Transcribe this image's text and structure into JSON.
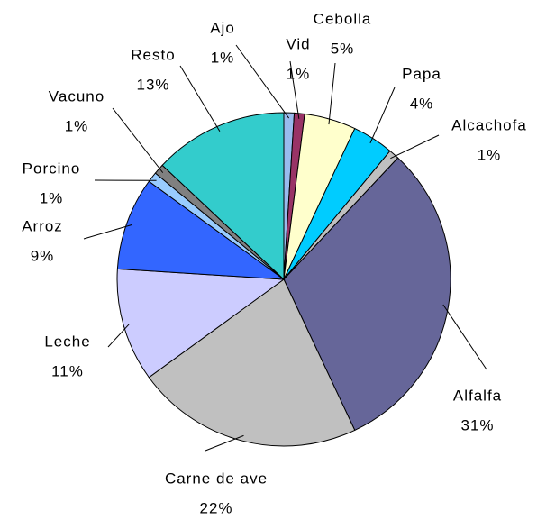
{
  "chart_data": {
    "type": "pie",
    "categories": [
      "Ajo",
      "Vid",
      "Cebolla",
      "Papa",
      "Alcachofa",
      "Alfalfa",
      "Carne de ave",
      "Leche",
      "Arroz",
      "Porcino",
      "Vacuno",
      "Resto"
    ],
    "values": [
      1,
      1,
      5,
      4,
      1,
      31,
      22,
      11,
      9,
      1,
      1,
      13
    ],
    "value_labels": [
      "1%",
      "1%",
      "5%",
      "4%",
      "1%",
      "31%",
      "22%",
      "11%",
      "9%",
      "1%",
      "1%",
      "13%"
    ],
    "colors": [
      "#99bbee",
      "#993366",
      "#ffffcc",
      "#00ccff",
      "#c0c0c0",
      "#666699",
      "#c0c0c0",
      "#ccccff",
      "#3366ff",
      "#99ccff",
      "#808080",
      "#33cccc"
    ]
  }
}
